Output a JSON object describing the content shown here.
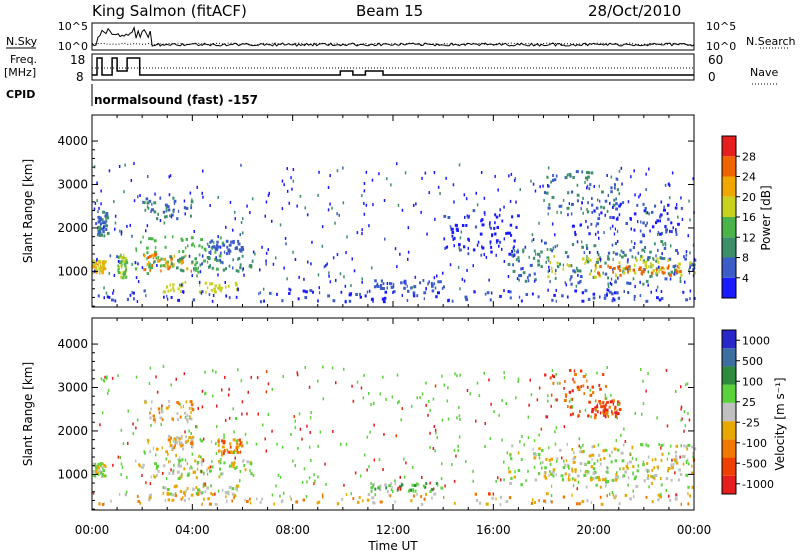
{
  "header": {
    "station": "King Salmon (fitACF)",
    "beam": "Beam 15",
    "date": "28/Oct/2010"
  },
  "strip": {
    "nsky_label": "N.Sky",
    "nsearch_label": "N.Search",
    "freq_label_1": "Freq.",
    "freq_label_2": "[MHz]",
    "nave_label": "Nave",
    "cpid_label": "CPID",
    "cpid_text": "normalsound (fast) -157",
    "nsky_ticks": [
      "10^5",
      "10^0"
    ],
    "nsearch_ticks": [
      "10^5",
      "10^0"
    ],
    "freq_ticks": [
      "18",
      "8"
    ],
    "nave_ticks": [
      "60",
      "0"
    ]
  },
  "colors": {
    "power_scale": [
      "#1a1aff",
      "#3c5cc8",
      "#3d8f6a",
      "#4ab44a",
      "#c8d21e",
      "#f0a800",
      "#f06400",
      "#e61e1e"
    ],
    "velocity_scale": [
      "#2828c8",
      "#3c6ea0",
      "#2e8a3c",
      "#5ad23c",
      "#c0c0c0",
      "#e8a800",
      "#f07800",
      "#f04000",
      "#e61e1e"
    ]
  },
  "chart_data": [
    {
      "type": "heatmap",
      "id": "power",
      "xlabel": "",
      "ylabel": "Slant Range [km]",
      "x_range_hours": [
        0,
        24
      ],
      "ylim": [
        180,
        4600
      ],
      "yticks": [
        "1000",
        "2000",
        "3000",
        "4000"
      ],
      "colorbar_title": "Power [dB]",
      "colorbar_ticks": [
        "4",
        "8",
        "12",
        "16",
        "20",
        "24",
        "28"
      ],
      "cmin": 0,
      "cmax": 32,
      "regions": [
        {
          "t0": 0.0,
          "t1": 0.5,
          "r0": 950,
          "r1": 1250,
          "level": 20
        },
        {
          "t0": 0.2,
          "t1": 0.6,
          "r0": 1800,
          "r1": 2400,
          "level": 8
        },
        {
          "t0": 1.0,
          "t1": 1.35,
          "r0": 850,
          "r1": 1400,
          "level": 16
        },
        {
          "t0": 1.7,
          "t1": 5.2,
          "r0": 900,
          "r1": 1800,
          "level": 14
        },
        {
          "t0": 2.0,
          "t1": 4.0,
          "r0": 1000,
          "r1": 1400,
          "level": 24
        },
        {
          "t0": 2.8,
          "t1": 5.8,
          "r0": 500,
          "r1": 750,
          "level": 18
        },
        {
          "t0": 3.0,
          "t1": 6.5,
          "r0": 1000,
          "r1": 1350,
          "level": 10
        },
        {
          "t0": 2.0,
          "t1": 4.0,
          "r0": 2200,
          "r1": 2700,
          "level": 8
        },
        {
          "t0": 4.5,
          "t1": 6.0,
          "r0": 1400,
          "r1": 1700,
          "level": 6
        },
        {
          "t0": 0.0,
          "t1": 24.0,
          "r0": 300,
          "r1": 560,
          "level": 4
        },
        {
          "t0": 11.0,
          "t1": 14.0,
          "r0": 600,
          "r1": 800,
          "level": 6
        },
        {
          "t0": 14.0,
          "t1": 17.0,
          "r0": 1300,
          "r1": 2400,
          "level": 3
        },
        {
          "t0": 16.5,
          "t1": 24.0,
          "r0": 700,
          "r1": 1700,
          "level": 8
        },
        {
          "t0": 18.0,
          "t1": 24.0,
          "r0": 850,
          "r1": 1350,
          "level": 18
        },
        {
          "t0": 20.0,
          "t1": 23.5,
          "r0": 900,
          "r1": 1150,
          "level": 26
        },
        {
          "t0": 18.0,
          "t1": 21.0,
          "r0": 2300,
          "r1": 3300,
          "level": 8
        },
        {
          "t0": 19.0,
          "t1": 23.5,
          "r0": 1800,
          "r1": 2600,
          "level": 4
        }
      ]
    },
    {
      "type": "heatmap",
      "id": "velocity",
      "xlabel": "Time UT",
      "ylabel": "Slant Range [km]",
      "x_range_hours": [
        0,
        24
      ],
      "xticks": [
        "00:00",
        "04:00",
        "08:00",
        "12:00",
        "16:00",
        "20:00",
        "00:00"
      ],
      "ylim": [
        180,
        4600
      ],
      "yticks": [
        "1000",
        "2000",
        "3000",
        "4000"
      ],
      "colorbar_title": "Velocity [m s⁻¹]",
      "colorbar_ticks": [
        "1000",
        "500",
        "100",
        "25",
        "-25",
        "-100",
        "-500",
        "-1000"
      ],
      "regions": [
        {
          "t0": 0.0,
          "t1": 0.5,
          "r0": 950,
          "r1": 1250,
          "level": 4
        },
        {
          "t0": 1.7,
          "t1": 5.2,
          "r0": 900,
          "r1": 1800,
          "level": 4
        },
        {
          "t0": 2.8,
          "t1": 5.8,
          "r0": 500,
          "r1": 750,
          "level": 4
        },
        {
          "t0": 3.0,
          "t1": 6.5,
          "r0": 1000,
          "r1": 1350,
          "level": 4
        },
        {
          "t0": 2.0,
          "t1": 4.0,
          "r0": 2200,
          "r1": 2700,
          "level": 5
        },
        {
          "t0": 3.0,
          "t1": 4.0,
          "r0": 1600,
          "r1": 1900,
          "level": 5
        },
        {
          "t0": 0.0,
          "t1": 24.0,
          "r0": 300,
          "r1": 560,
          "level": 5
        },
        {
          "t0": 11.0,
          "t1": 14.0,
          "r0": 600,
          "r1": 800,
          "level": 3
        },
        {
          "t0": 16.5,
          "t1": 24.0,
          "r0": 700,
          "r1": 1700,
          "level": 4
        },
        {
          "t0": 18.0,
          "t1": 24.0,
          "r0": 850,
          "r1": 1350,
          "level": 4
        },
        {
          "t0": 18.0,
          "t1": 20.5,
          "r0": 2300,
          "r1": 3400,
          "level": 7
        },
        {
          "t0": 20.0,
          "t1": 21.0,
          "r0": 2300,
          "r1": 2700,
          "level": 7
        },
        {
          "t0": 5.0,
          "t1": 6.0,
          "r0": 1500,
          "r1": 1800,
          "level": 6
        }
      ]
    }
  ]
}
